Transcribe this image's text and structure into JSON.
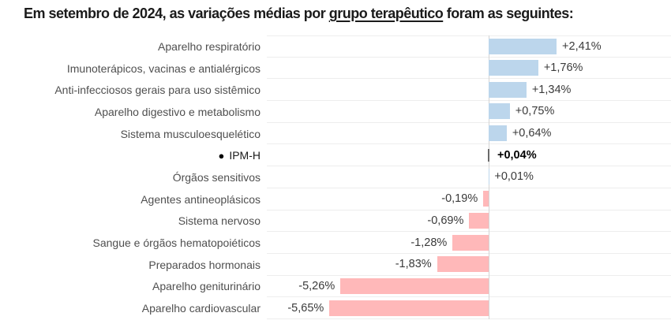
{
  "title": {
    "prefix": "Em setembro de 2024, as variações médias por ",
    "underlined": "grupo terapêutico",
    "suffix": " foram as seguintes:"
  },
  "chart_data": {
    "type": "bar",
    "orientation": "horizontal",
    "value_unit": "%",
    "decimal_separator": ",",
    "xlim": [
      -7.9,
      6.5
    ],
    "grid": "row separator lines only, no tick labels",
    "legend": "none",
    "colors": {
      "positive_bar": "#bcd6ec",
      "negative_bar": "#ffb8b9",
      "zero_axis_line": "#d4d4d4",
      "row_separator": "#ededed",
      "ipm_h_tick": "#6a6a6a",
      "label_text": "#4f4f4f",
      "value_text": "#3a3a3a"
    },
    "rows": [
      {
        "label": "Aparelho respiratório",
        "value": 2.41,
        "display": "+2,41%"
      },
      {
        "label": "Imunoterápicos, vacinas e antialérgicos",
        "value": 1.76,
        "display": "+1,76%"
      },
      {
        "label": "Anti-infecciosos gerais para uso sistêmico",
        "value": 1.34,
        "display": "+1,34%"
      },
      {
        "label": "Aparelho digestivo e metabolismo",
        "value": 0.75,
        "display": "+0,75%"
      },
      {
        "label": "Sistema musculoesquelético",
        "value": 0.64,
        "display": "+0,64%"
      },
      {
        "label": "IPM-H",
        "value": 0.04,
        "display": "+0,04%",
        "highlight": true,
        "bullet": "●"
      },
      {
        "label": "Órgãos sensitivos",
        "value": 0.01,
        "display": "+0,01%"
      },
      {
        "label": "Agentes antineoplásicos",
        "value": -0.19,
        "display": "-0,19%"
      },
      {
        "label": "Sistema nervoso",
        "value": -0.69,
        "display": "-0,69%"
      },
      {
        "label": "Sangue e órgãos hematopoiéticos",
        "value": -1.28,
        "display": "-1,28%"
      },
      {
        "label": "Preparados hormonais",
        "value": -1.83,
        "display": "-1,83%"
      },
      {
        "label": "Aparelho geniturinário",
        "value": -5.26,
        "display": "-5,26%"
      },
      {
        "label": "Aparelho cardiovascular",
        "value": -5.65,
        "display": "-5,65%"
      }
    ]
  }
}
